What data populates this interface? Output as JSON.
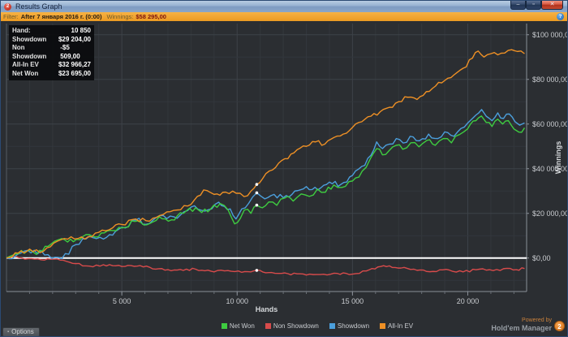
{
  "window": {
    "title": "Results Graph",
    "icon_badge": "2",
    "controls": {
      "minimize": "–",
      "maximize": "▫",
      "close": "✕"
    }
  },
  "filter_bar": {
    "filter_label": "Filter:",
    "filter_value": "After 7 января 2016 г. (0:00)",
    "winnings_label": "Winnings:",
    "winnings_value": "$58 295,00",
    "info_icon": "?"
  },
  "stats_panel": {
    "rows": [
      {
        "label": "Hand:",
        "value": "10 850"
      },
      {
        "label": "Showdown",
        "value": "$29 204,00"
      },
      {
        "label": "Non Showdown",
        "value": "-$5 509,00"
      },
      {
        "label": "All-In EV",
        "value": "$32 966,27"
      },
      {
        "label": "Net Won",
        "value": "$23 695,00"
      }
    ]
  },
  "footer": {
    "options_label": "Options",
    "options_icon": "▪",
    "powered_by": "Powered by",
    "brand": "Hold'em Manager",
    "brand_badge": "2"
  },
  "chart_data": {
    "type": "line",
    "xlabel": "Hands",
    "ylabel": "Winnings",
    "xlim": [
      0,
      22550
    ],
    "ylim": [
      -15000,
      105000
    ],
    "x_minor_step": 1000,
    "y_minor_step": 10000,
    "y_major_step": 20000,
    "x_major_ticks": [
      {
        "value": 5000,
        "label": "5 000"
      },
      {
        "value": 10000,
        "label": "10 000"
      },
      {
        "value": 15000,
        "label": "15 000"
      },
      {
        "value": 20000,
        "label": "20 000"
      }
    ],
    "y_major_ticks": [
      {
        "value": 0,
        "label": "$0,00"
      },
      {
        "value": 20000,
        "label": "$20 000,00"
      },
      {
        "value": 40000,
        "label": "$40 000,00"
      },
      {
        "value": 60000,
        "label": "$60 000,00"
      },
      {
        "value": 80000,
        "label": "$80 000,00"
      },
      {
        "value": 100000,
        "label": "$100 000,00"
      }
    ],
    "grid_minor_color": "#33373c",
    "grid_major_color": "#3d4248",
    "axis_color": "#8a9098",
    "tick_label_color": "#c9ccd0",
    "axis_title_color": "#d5d8db",
    "zero_line_color": "#ffffff",
    "legend_position": "bottom",
    "draw_order": [
      1,
      2,
      0,
      3
    ],
    "hover": {
      "hand": 10850,
      "points": [
        {
          "name": "Net Won",
          "value": 23695
        },
        {
          "name": "Non Showdown",
          "value": -5509
        },
        {
          "name": "Showdown",
          "value": 29204
        },
        {
          "name": "All-In EV",
          "value": 32966.27
        }
      ]
    },
    "series": [
      {
        "name": "Net Won",
        "color": "#3ecc40",
        "jitter": 1200,
        "points": [
          [
            0,
            0
          ],
          [
            400,
            1800
          ],
          [
            900,
            3200
          ],
          [
            1300,
            1600
          ],
          [
            1800,
            5200
          ],
          [
            2400,
            8700
          ],
          [
            2900,
            7300
          ],
          [
            3450,
            10500
          ],
          [
            3980,
            9500
          ],
          [
            4500,
            12400
          ],
          [
            5000,
            13500
          ],
          [
            5560,
            16400
          ],
          [
            6090,
            14900
          ],
          [
            6620,
            18500
          ],
          [
            7150,
            17100
          ],
          [
            7670,
            20000
          ],
          [
            8200,
            22500
          ],
          [
            8730,
            20700
          ],
          [
            9260,
            24400
          ],
          [
            9610,
            21500
          ],
          [
            9890,
            15300
          ],
          [
            10140,
            17800
          ],
          [
            10310,
            21500
          ],
          [
            10600,
            20000
          ],
          [
            10850,
            23695
          ],
          [
            11090,
            22500
          ],
          [
            11370,
            25100
          ],
          [
            11720,
            23600
          ],
          [
            12070,
            26900
          ],
          [
            12430,
            25500
          ],
          [
            12780,
            28700
          ],
          [
            13130,
            27600
          ],
          [
            13480,
            30900
          ],
          [
            13830,
            29500
          ],
          [
            14190,
            32700
          ],
          [
            14540,
            31600
          ],
          [
            15000,
            34500
          ],
          [
            15420,
            38900
          ],
          [
            15770,
            44400
          ],
          [
            16050,
            49000
          ],
          [
            16300,
            46200
          ],
          [
            16580,
            48000
          ],
          [
            16900,
            50500
          ],
          [
            17180,
            48700
          ],
          [
            17530,
            51600
          ],
          [
            17880,
            49800
          ],
          [
            18230,
            52700
          ],
          [
            18590,
            50500
          ],
          [
            18940,
            53500
          ],
          [
            19290,
            51600
          ],
          [
            19640,
            55300
          ],
          [
            19990,
            57800
          ],
          [
            20350,
            61500
          ],
          [
            20590,
            63600
          ],
          [
            20800,
            60700
          ],
          [
            21050,
            58900
          ],
          [
            21300,
            62200
          ],
          [
            21510,
            60000
          ],
          [
            21760,
            61500
          ],
          [
            22000,
            57800
          ],
          [
            22210,
            56400
          ],
          [
            22460,
            58295
          ]
        ]
      },
      {
        "name": "Non Showdown",
        "color": "#d84b4b",
        "jitter": 500,
        "points": [
          [
            0,
            0
          ],
          [
            400,
            800
          ],
          [
            800,
            -500
          ],
          [
            1500,
            -800
          ],
          [
            2200,
            -400
          ],
          [
            3000,
            -2500
          ],
          [
            3600,
            -3600
          ],
          [
            4200,
            -3000
          ],
          [
            5000,
            -3800
          ],
          [
            5800,
            -3400
          ],
          [
            6600,
            -4800
          ],
          [
            7400,
            -5400
          ],
          [
            8200,
            -5000
          ],
          [
            9000,
            -6200
          ],
          [
            9600,
            -5600
          ],
          [
            10200,
            -6400
          ],
          [
            10850,
            -5509
          ],
          [
            11500,
            -6500
          ],
          [
            12200,
            -7000
          ],
          [
            13000,
            -7600
          ],
          [
            13600,
            -7400
          ],
          [
            14200,
            -6800
          ],
          [
            15000,
            -7200
          ],
          [
            15600,
            -5800
          ],
          [
            16100,
            -4000
          ],
          [
            16600,
            -3500
          ],
          [
            17100,
            -4500
          ],
          [
            17800,
            -5500
          ],
          [
            18500,
            -6000
          ],
          [
            19200,
            -5400
          ],
          [
            19800,
            -6200
          ],
          [
            20500,
            -5000
          ],
          [
            21100,
            -5600
          ],
          [
            21700,
            -4600
          ],
          [
            22100,
            -5200
          ],
          [
            22460,
            -4700
          ]
        ]
      },
      {
        "name": "Showdown",
        "color": "#4b9fdc",
        "jitter": 1200,
        "points": [
          [
            0,
            0
          ],
          [
            500,
            1800
          ],
          [
            1200,
            3500
          ],
          [
            1800,
            1500
          ],
          [
            2400,
            -300
          ],
          [
            3000,
            6000
          ],
          [
            3600,
            9800
          ],
          [
            4200,
            8500
          ],
          [
            5000,
            13800
          ],
          [
            5600,
            17000
          ],
          [
            6200,
            15500
          ],
          [
            6800,
            19000
          ],
          [
            7400,
            17800
          ],
          [
            8000,
            22800
          ],
          [
            8600,
            21000
          ],
          [
            9200,
            25000
          ],
          [
            9700,
            22000
          ],
          [
            9950,
            17500
          ],
          [
            10200,
            22000
          ],
          [
            10500,
            24500
          ],
          [
            10850,
            29204
          ],
          [
            11200,
            26500
          ],
          [
            11600,
            28500
          ],
          [
            12000,
            27000
          ],
          [
            12500,
            30000
          ],
          [
            13000,
            32000
          ],
          [
            13500,
            30500
          ],
          [
            14000,
            34000
          ],
          [
            14500,
            33000
          ],
          [
            15000,
            37000
          ],
          [
            15400,
            41000
          ],
          [
            15800,
            46000
          ],
          [
            16050,
            52000
          ],
          [
            16300,
            49000
          ],
          [
            16600,
            51000
          ],
          [
            16900,
            53500
          ],
          [
            17200,
            51500
          ],
          [
            17500,
            54500
          ],
          [
            17900,
            52500
          ],
          [
            18300,
            55500
          ],
          [
            18700,
            53500
          ],
          [
            19000,
            56500
          ],
          [
            19400,
            54500
          ],
          [
            19700,
            58000
          ],
          [
            20000,
            60500
          ],
          [
            20350,
            64000
          ],
          [
            20600,
            66500
          ],
          [
            20800,
            63500
          ],
          [
            21050,
            61500
          ],
          [
            21300,
            65000
          ],
          [
            21550,
            62500
          ],
          [
            21800,
            64500
          ],
          [
            22050,
            61000
          ],
          [
            22250,
            59500
          ],
          [
            22460,
            60500
          ]
        ]
      },
      {
        "name": "All-In EV",
        "color": "#ee9025",
        "jitter": 900,
        "points": [
          [
            0,
            0
          ],
          [
            500,
            2200
          ],
          [
            1000,
            4000
          ],
          [
            1600,
            3000
          ],
          [
            2200,
            7500
          ],
          [
            2800,
            9500
          ],
          [
            3400,
            8500
          ],
          [
            4000,
            11500
          ],
          [
            4600,
            13500
          ],
          [
            5000,
            15000
          ],
          [
            5600,
            17500
          ],
          [
            6200,
            16500
          ],
          [
            6800,
            19500
          ],
          [
            7400,
            21500
          ],
          [
            8000,
            24000
          ],
          [
            8550,
            30500
          ],
          [
            9000,
            28500
          ],
          [
            9500,
            29500
          ],
          [
            9960,
            29000
          ],
          [
            10300,
            27500
          ],
          [
            10600,
            30000
          ],
          [
            10850,
            32966
          ],
          [
            11100,
            35500
          ],
          [
            11400,
            39000
          ],
          [
            11800,
            42500
          ],
          [
            12200,
            44500
          ],
          [
            12600,
            48500
          ],
          [
            13000,
            50000
          ],
          [
            13400,
            52000
          ],
          [
            13800,
            51000
          ],
          [
            14200,
            54000
          ],
          [
            14600,
            55500
          ],
          [
            15000,
            58500
          ],
          [
            15400,
            61000
          ],
          [
            15800,
            63500
          ],
          [
            16200,
            65500
          ],
          [
            16600,
            67500
          ],
          [
            17000,
            70000
          ],
          [
            17400,
            72000
          ],
          [
            17800,
            71000
          ],
          [
            18200,
            74500
          ],
          [
            18600,
            77000
          ],
          [
            19000,
            79500
          ],
          [
            19400,
            82000
          ],
          [
            19800,
            85000
          ],
          [
            20200,
            89500
          ],
          [
            20450,
            92700
          ],
          [
            20700,
            90000
          ],
          [
            21000,
            91500
          ],
          [
            21300,
            91000
          ],
          [
            21600,
            91800
          ],
          [
            21900,
            93300
          ],
          [
            22150,
            92500
          ],
          [
            22460,
            91500
          ]
        ]
      }
    ]
  }
}
